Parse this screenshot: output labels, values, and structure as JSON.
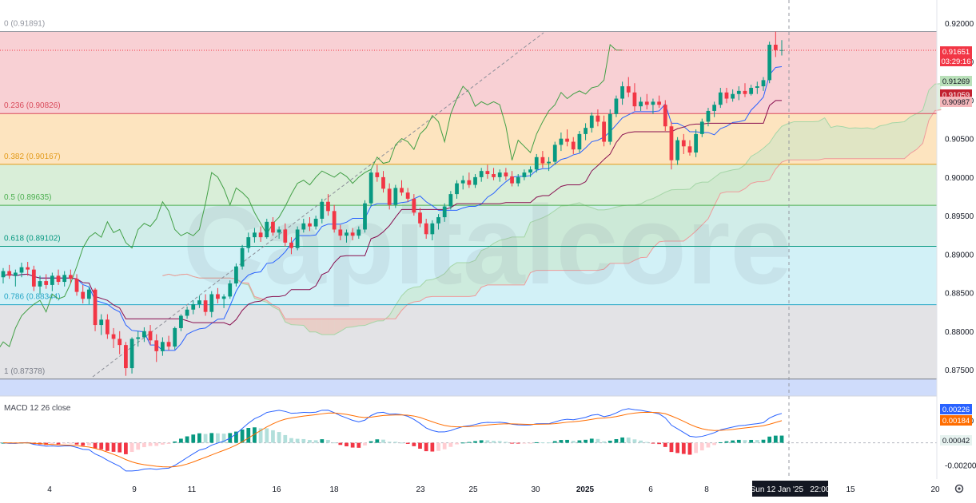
{
  "chart_data": [
    {
      "type": "candlestick",
      "instrument_hint": "Fibonacci retracement, Ichimoku cloud",
      "watermark": "Capitalcore",
      "y_axis": {
        "ticks": [
          "0.92000",
          "0.91500",
          "0.91000",
          "0.90500",
          "0.90000",
          "0.89500",
          "0.89000",
          "0.88500",
          "0.88000",
          "0.87500"
        ],
        "ylim": [
          0.872,
          0.921
        ]
      },
      "fib_levels": [
        {
          "label": "0 (0.91891)",
          "value": 0.91891,
          "color": "#9598a1",
          "band": "#f8d0d4"
        },
        {
          "label": "0.236 (0.90826)",
          "value": 0.90826,
          "color": "#d94a5a",
          "band": "#fde4bf"
        },
        {
          "label": "0.382 (0.90167)",
          "value": 0.90167,
          "color": "#e39b1b",
          "band": "#d9eed8"
        },
        {
          "label": "0.5 (0.89635)",
          "value": 0.89635,
          "color": "#4caf50",
          "band": "#d1ede9"
        },
        {
          "label": "0.618 (0.89102)",
          "value": 0.89102,
          "color": "#089981",
          "band": "#d2f1f7"
        },
        {
          "label": "0.786 (0.88344)",
          "value": 0.88344,
          "color": "#26a6c6",
          "band": "#e3e3e6"
        },
        {
          "label": "1 (0.87378)",
          "value": 0.87378,
          "color": "#7b7f8a",
          "band": "#cfdcfb"
        }
      ],
      "price_badges": [
        {
          "text": "0.91651",
          "color": "#f23645"
        },
        {
          "text": "03:29:16",
          "color": "#f23645"
        },
        {
          "text": "0.91269",
          "color": "#b9e0b9"
        },
        {
          "text": "0.91059",
          "color": "#c2212f"
        },
        {
          "text": "0.90987",
          "color": "#f5b7bb"
        }
      ],
      "colors": {
        "up": "#089981",
        "down": "#f23645",
        "tenkan": "#2962ff",
        "kijun": "#880e4f",
        "chikou": "#43a047",
        "span_a": "#a5d6a7",
        "span_b": "#ef9a9a"
      },
      "candles_ohlc": [
        [
          0.887,
          0.8882,
          0.8862,
          0.8878
        ],
        [
          0.8878,
          0.8886,
          0.8868,
          0.8872
        ],
        [
          0.8872,
          0.888,
          0.8858,
          0.8876
        ],
        [
          0.8876,
          0.8889,
          0.887,
          0.8883
        ],
        [
          0.8883,
          0.889,
          0.8872,
          0.888
        ],
        [
          0.888,
          0.8885,
          0.8852,
          0.8858
        ],
        [
          0.8858,
          0.8872,
          0.8848,
          0.8865
        ],
        [
          0.8865,
          0.8874,
          0.8855,
          0.886
        ],
        [
          0.886,
          0.8876,
          0.8852,
          0.8872
        ],
        [
          0.8872,
          0.888,
          0.886,
          0.8864
        ],
        [
          0.8864,
          0.8878,
          0.8858,
          0.8873
        ],
        [
          0.8873,
          0.888,
          0.8862,
          0.8868
        ],
        [
          0.8868,
          0.8874,
          0.8846,
          0.8851
        ],
        [
          0.8851,
          0.886,
          0.8836,
          0.8842
        ],
        [
          0.8842,
          0.8858,
          0.8835,
          0.8854
        ],
        [
          0.8854,
          0.8856,
          0.88,
          0.8808
        ],
        [
          0.8808,
          0.8822,
          0.8795,
          0.8815
        ],
        [
          0.8815,
          0.8822,
          0.879,
          0.8796
        ],
        [
          0.8796,
          0.8804,
          0.8778,
          0.879
        ],
        [
          0.879,
          0.88,
          0.877,
          0.8782
        ],
        [
          0.8782,
          0.8786,
          0.8742,
          0.8752
        ],
        [
          0.8752,
          0.8792,
          0.8745,
          0.879
        ],
        [
          0.879,
          0.88,
          0.878,
          0.8792
        ],
        [
          0.8792,
          0.8805,
          0.8786,
          0.88
        ],
        [
          0.88,
          0.8808,
          0.8782,
          0.8788
        ],
        [
          0.8788,
          0.8796,
          0.876,
          0.8774
        ],
        [
          0.8774,
          0.8792,
          0.8768,
          0.8786
        ],
        [
          0.8786,
          0.8794,
          0.8775,
          0.878
        ],
        [
          0.878,
          0.8806,
          0.8776,
          0.8804
        ],
        [
          0.8804,
          0.8822,
          0.88,
          0.882
        ],
        [
          0.882,
          0.8832,
          0.8816,
          0.8828
        ],
        [
          0.8828,
          0.884,
          0.8822,
          0.8835
        ],
        [
          0.8835,
          0.8846,
          0.883,
          0.884
        ],
        [
          0.884,
          0.8848,
          0.882,
          0.8825
        ],
        [
          0.8825,
          0.8852,
          0.8818,
          0.8848
        ],
        [
          0.8848,
          0.8856,
          0.8836,
          0.8842
        ],
        [
          0.8842,
          0.8848,
          0.883,
          0.8845
        ],
        [
          0.8845,
          0.8866,
          0.8842,
          0.8862
        ],
        [
          0.8862,
          0.8888,
          0.8858,
          0.8884
        ],
        [
          0.8884,
          0.8912,
          0.888,
          0.8908
        ],
        [
          0.8908,
          0.8928,
          0.8902,
          0.8922
        ],
        [
          0.8922,
          0.8934,
          0.8915,
          0.8928
        ],
        [
          0.8928,
          0.8936,
          0.8916,
          0.8922
        ],
        [
          0.8922,
          0.8946,
          0.892,
          0.8942
        ],
        [
          0.8942,
          0.8948,
          0.8924,
          0.8928
        ],
        [
          0.8928,
          0.8936,
          0.892,
          0.8932
        ],
        [
          0.8932,
          0.894,
          0.891,
          0.8915
        ],
        [
          0.8915,
          0.8922,
          0.89,
          0.8908
        ],
        [
          0.8908,
          0.8936,
          0.8905,
          0.8932
        ],
        [
          0.8932,
          0.8946,
          0.8928,
          0.894
        ],
        [
          0.894,
          0.8948,
          0.893,
          0.8936
        ],
        [
          0.8936,
          0.895,
          0.8932,
          0.8946
        ],
        [
          0.8946,
          0.8972,
          0.894,
          0.8968
        ],
        [
          0.8968,
          0.8978,
          0.895,
          0.8956
        ],
        [
          0.8956,
          0.8964,
          0.8928,
          0.8932
        ],
        [
          0.8932,
          0.8938,
          0.8918,
          0.8924
        ],
        [
          0.8924,
          0.8932,
          0.8915,
          0.8928
        ],
        [
          0.8928,
          0.8934,
          0.8918,
          0.8924
        ],
        [
          0.8924,
          0.8936,
          0.892,
          0.8932
        ],
        [
          0.8932,
          0.897,
          0.8928,
          0.8966
        ],
        [
          0.8966,
          0.901,
          0.8962,
          0.9006
        ],
        [
          0.9006,
          0.9016,
          0.8994,
          0.9
        ],
        [
          0.9,
          0.9008,
          0.898,
          0.8985
        ],
        [
          0.8985,
          0.8992,
          0.8958,
          0.8964
        ],
        [
          0.8964,
          0.899,
          0.896,
          0.8986
        ],
        [
          0.8986,
          0.8996,
          0.8976,
          0.898
        ],
        [
          0.898,
          0.8986,
          0.8968,
          0.8972
        ],
        [
          0.8972,
          0.8978,
          0.895,
          0.8954
        ],
        [
          0.8954,
          0.896,
          0.8935,
          0.894
        ],
        [
          0.894,
          0.8946,
          0.892,
          0.8926
        ],
        [
          0.8926,
          0.8944,
          0.8918,
          0.894
        ],
        [
          0.894,
          0.8952,
          0.8932,
          0.8948
        ],
        [
          0.8948,
          0.8966,
          0.8942,
          0.8962
        ],
        [
          0.8962,
          0.8982,
          0.8958,
          0.8978
        ],
        [
          0.8978,
          0.8996,
          0.8972,
          0.8992
        ],
        [
          0.8992,
          0.9002,
          0.8984,
          0.8996
        ],
        [
          0.8996,
          0.9006,
          0.8986,
          0.899
        ],
        [
          0.899,
          0.9004,
          0.8986,
          0.9
        ],
        [
          0.9,
          0.9012,
          0.8994,
          0.9008
        ],
        [
          0.9008,
          0.9016,
          0.8998,
          0.9004
        ],
        [
          0.9004,
          0.9012,
          0.8996,
          0.9
        ],
        [
          0.9,
          0.901,
          0.8994,
          0.9006
        ],
        [
          0.9006,
          0.9012,
          0.8996,
          0.9001
        ],
        [
          0.9001,
          0.9008,
          0.8988,
          0.8992
        ],
        [
          0.8992,
          0.9004,
          0.8988,
          0.9
        ],
        [
          0.9,
          0.901,
          0.8996,
          0.9006
        ],
        [
          0.9006,
          0.9014,
          0.9,
          0.901
        ],
        [
          0.901,
          0.903,
          0.9006,
          0.9026
        ],
        [
          0.9026,
          0.9034,
          0.9012,
          0.9018
        ],
        [
          0.9018,
          0.9026,
          0.9008,
          0.902
        ],
        [
          0.902,
          0.9046,
          0.9016,
          0.9042
        ],
        [
          0.9042,
          0.9058,
          0.9034,
          0.905
        ],
        [
          0.905,
          0.9062,
          0.904,
          0.9046
        ],
        [
          0.9046,
          0.9052,
          0.903,
          0.9036
        ],
        [
          0.9036,
          0.906,
          0.9032,
          0.9056
        ],
        [
          0.9056,
          0.907,
          0.9048,
          0.9064
        ],
        [
          0.9064,
          0.9084,
          0.9058,
          0.908
        ],
        [
          0.908,
          0.9088,
          0.9066,
          0.9072
        ],
        [
          0.9072,
          0.908,
          0.904,
          0.9046
        ],
        [
          0.9046,
          0.9088,
          0.9042,
          0.9082
        ],
        [
          0.9082,
          0.9106,
          0.9078,
          0.9102
        ],
        [
          0.9102,
          0.9124,
          0.9094,
          0.9118
        ],
        [
          0.9118,
          0.913,
          0.9104,
          0.911
        ],
        [
          0.911,
          0.9122,
          0.9086,
          0.9092
        ],
        [
          0.9092,
          0.9104,
          0.9086,
          0.9098
        ],
        [
          0.9098,
          0.9108,
          0.9088,
          0.9094
        ],
        [
          0.9094,
          0.9102,
          0.9082,
          0.9098
        ],
        [
          0.9098,
          0.9106,
          0.909,
          0.9094
        ],
        [
          0.9094,
          0.91,
          0.906,
          0.9066
        ],
        [
          0.9066,
          0.9072,
          0.901,
          0.9022
        ],
        [
          0.9022,
          0.9052,
          0.9016,
          0.9048
        ],
        [
          0.9048,
          0.9056,
          0.903,
          0.904
        ],
        [
          0.904,
          0.9048,
          0.9028,
          0.9032
        ],
        [
          0.9032,
          0.9062,
          0.9026,
          0.9056
        ],
        [
          0.9056,
          0.9076,
          0.9052,
          0.9072
        ],
        [
          0.9072,
          0.909,
          0.9066,
          0.9086
        ],
        [
          0.9086,
          0.9098,
          0.9078,
          0.9094
        ],
        [
          0.9094,
          0.9116,
          0.909,
          0.911
        ],
        [
          0.911,
          0.9116,
          0.9096,
          0.9102
        ],
        [
          0.9102,
          0.9114,
          0.9098,
          0.9108
        ],
        [
          0.9108,
          0.9118,
          0.91,
          0.9112
        ],
        [
          0.9112,
          0.9122,
          0.9104,
          0.9108
        ],
        [
          0.9108,
          0.912,
          0.9106,
          0.9116
        ],
        [
          0.9116,
          0.9124,
          0.9108,
          0.9118
        ],
        [
          0.9118,
          0.913,
          0.9112,
          0.9126
        ],
        [
          0.9126,
          0.9176,
          0.9122,
          0.9172
        ],
        [
          0.9172,
          0.9189,
          0.9156,
          0.9165
        ],
        [
          0.9165,
          0.9178,
          0.9158,
          0.9165
        ]
      ],
      "macd": {
        "title": "MACD 12 26 close",
        "y_ticks": [
          "0.00200",
          "-0.00200"
        ],
        "ylim": [
          -0.0031,
          0.0039
        ],
        "badges": [
          {
            "text": "0.00226",
            "color": "#2962ff"
          },
          {
            "text": "0.00184",
            "color": "#ff6d00"
          },
          {
            "text": "0.00042",
            "color": "#e6f2ef"
          }
        ],
        "colors": {
          "macd": "#2962ff",
          "signal": "#ff6d00",
          "hist_up_strong": "#089981",
          "hist_up_weak": "#b2dfdb",
          "hist_down_strong": "#f23645",
          "hist_down_weak": "#ffcdd2"
        }
      },
      "x_axis": {
        "labels": [
          "4",
          "9",
          "11",
          "16",
          "18",
          "23",
          "25",
          "30",
          "2025",
          "6",
          "8",
          "15",
          "20"
        ],
        "crosshair_label": "Sun 12 Jan '25   22:00"
      }
    }
  ]
}
